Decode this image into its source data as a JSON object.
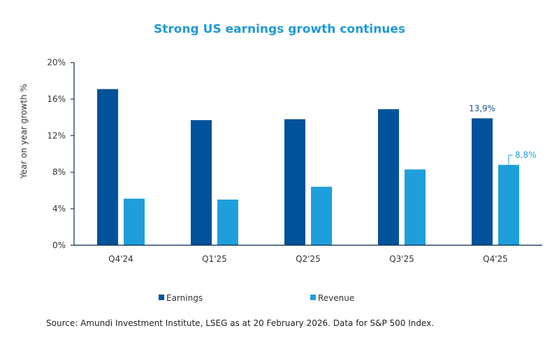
{
  "chart_data": {
    "type": "bar",
    "title": "Strong US earnings growth continues",
    "ylabel": "Year on year growth %",
    "xlabel": "",
    "ylim": [
      0,
      20
    ],
    "yticks": [
      "0%",
      "4%",
      "8%",
      "12%",
      "16%",
      "20%"
    ],
    "categories": [
      "Q4'24",
      "Q1'25",
      "Q2'25",
      "Q3'25",
      "Q4'25"
    ],
    "series": [
      {
        "name": "Earnings",
        "color": "#00529b",
        "values": [
          17.1,
          13.7,
          13.8,
          14.9,
          13.9
        ]
      },
      {
        "name": "Revenue",
        "color": "#1e9fdb",
        "values": [
          5.1,
          5.0,
          6.4,
          8.3,
          8.8
        ]
      }
    ],
    "data_labels": [
      {
        "series": 0,
        "index": 4,
        "text": "13,9%"
      },
      {
        "series": 1,
        "index": 4,
        "text": "8,8%"
      }
    ],
    "grid": false,
    "legend": "bottom"
  },
  "source": "Source:  Amundi Investment Institute, LSEG as at 20 February 2026.  Data for S&P 500 Index."
}
